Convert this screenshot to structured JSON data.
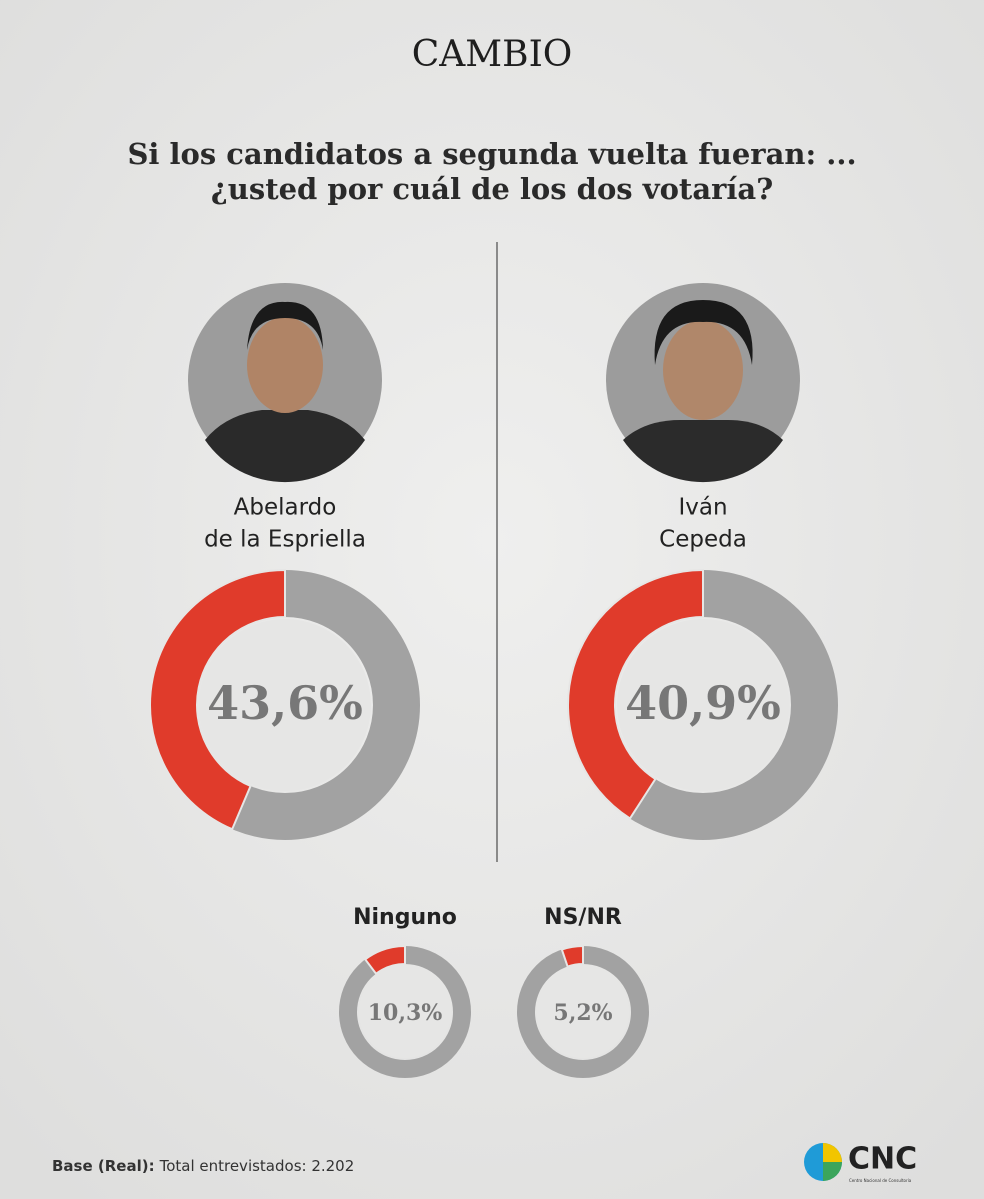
{
  "brand": "CAMBIO",
  "question": [
    "Si los candidatos a segunda vuelta fueran: ...",
    "¿usted por cuál de los dos votaría?"
  ],
  "chart_data": [
    {
      "type": "donut",
      "title": [
        "Abelardo",
        "de la Espriella"
      ],
      "values": [
        43.6
      ],
      "value_labels": [
        "43,6%"
      ],
      "ylim": [
        0,
        100
      ],
      "color": "#e03b2b",
      "track_color": "#a2a2a2"
    },
    {
      "type": "donut",
      "title": [
        "Iván",
        "Cepeda"
      ],
      "values": [
        40.9
      ],
      "value_labels": [
        "40,9%"
      ],
      "ylim": [
        0,
        100
      ],
      "color": "#e03b2b",
      "track_color": "#a2a2a2"
    },
    {
      "type": "donut",
      "title": [
        "Ninguno"
      ],
      "values": [
        10.3
      ],
      "value_labels": [
        "10,3%"
      ],
      "ylim": [
        0,
        100
      ],
      "color": "#e03b2b",
      "track_color": "#a2a2a2"
    },
    {
      "type": "donut",
      "title": [
        "NS/NR"
      ],
      "values": [
        5.2
      ],
      "value_labels": [
        "5,2%"
      ],
      "ylim": [
        0,
        100
      ],
      "color": "#e03b2b",
      "track_color": "#a2a2a2"
    }
  ],
  "footer": {
    "label": "Base (Real):",
    "text": "Total entrevistados: 2.202"
  },
  "logo": {
    "name": "CNC",
    "subtitle": "Centro Nacional de Consultoría"
  }
}
